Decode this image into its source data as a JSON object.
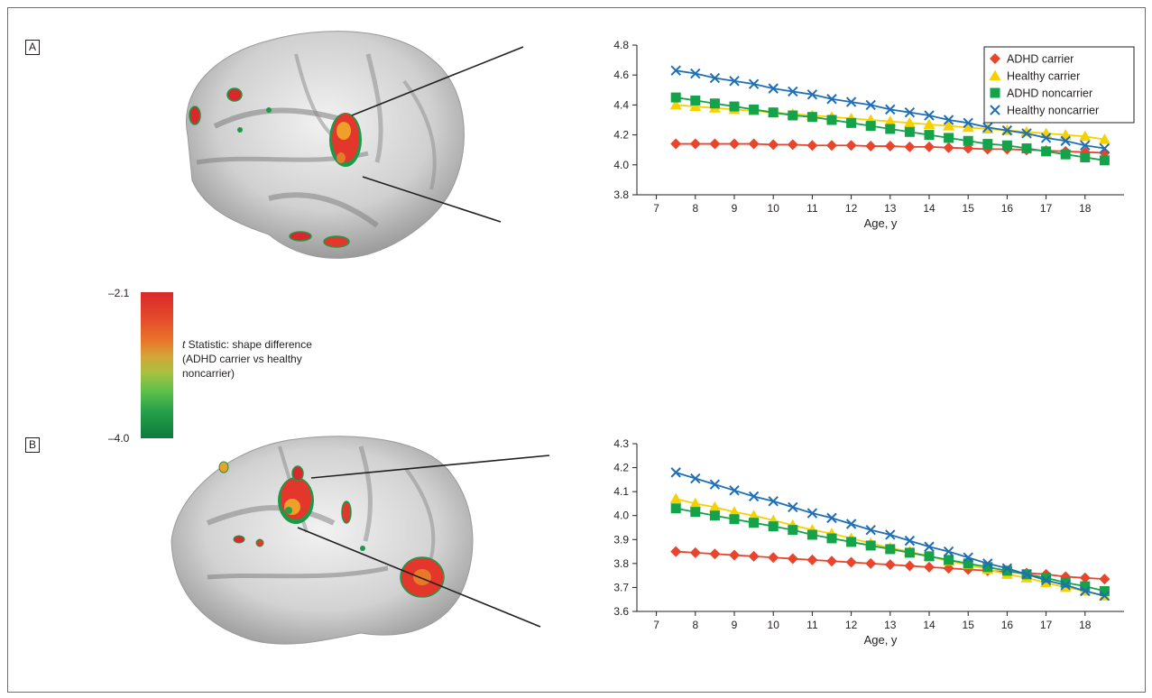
{
  "figure": {
    "panel_a_label": "A",
    "panel_b_label": "B"
  },
  "colorbar": {
    "max_label": "–2.1",
    "min_label": "–4.0",
    "title_italic": "t",
    "title_rest": " Statistic: shape difference",
    "line2": "(ADHD carrier vs healthy",
    "line3": "noncarrier)"
  },
  "colors": {
    "adhd_carrier": "#e8452c",
    "healthy_carrier": "#f7d000",
    "adhd_noncarrier": "#14a24a",
    "healthy_noncarrier": "#1f6fb6"
  },
  "chart_data": [
    {
      "type": "line",
      "panel": "A",
      "xlabel": "Age, y",
      "ylabel": "",
      "xlim": [
        6.5,
        19.0
      ],
      "ylim": [
        3.8,
        4.8
      ],
      "xticks": [
        7,
        8,
        9,
        10,
        11,
        12,
        13,
        14,
        15,
        16,
        17,
        18
      ],
      "yticks": [
        3.8,
        4.0,
        4.2,
        4.4,
        4.6,
        4.8
      ],
      "ytick_labels": [
        "3.8",
        "4.0",
        "4.2",
        "4.4",
        "4.6",
        "4.8"
      ],
      "legend_position": "top-right",
      "x": [
        7.5,
        8.0,
        8.5,
        9.0,
        9.5,
        10.0,
        10.5,
        11.0,
        11.5,
        12.0,
        12.5,
        13.0,
        13.5,
        14.0,
        14.5,
        15.0,
        15.5,
        16.0,
        16.5,
        17.0,
        17.5,
        18.0,
        18.5
      ],
      "series": [
        {
          "name": "ADHD carrier",
          "marker": "diamond",
          "color": "#e8452c",
          "values": [
            4.14,
            4.14,
            4.14,
            4.14,
            4.14,
            4.135,
            4.135,
            4.13,
            4.13,
            4.13,
            4.125,
            4.125,
            4.12,
            4.12,
            4.115,
            4.11,
            4.105,
            4.105,
            4.1,
            4.095,
            4.09,
            4.085,
            4.08
          ]
        },
        {
          "name": "Healthy carrier",
          "marker": "triangle",
          "color": "#f7d000",
          "values": [
            4.4,
            4.39,
            4.38,
            4.37,
            4.36,
            4.35,
            4.34,
            4.33,
            4.32,
            4.31,
            4.3,
            4.29,
            4.28,
            4.27,
            4.26,
            4.25,
            4.24,
            4.23,
            4.22,
            4.21,
            4.2,
            4.19,
            4.17
          ]
        },
        {
          "name": "ADHD noncarrier",
          "marker": "square",
          "color": "#14a24a",
          "values": [
            4.45,
            4.43,
            4.41,
            4.39,
            4.37,
            4.35,
            4.33,
            4.32,
            4.3,
            4.28,
            4.26,
            4.24,
            4.22,
            4.2,
            4.18,
            4.16,
            4.14,
            4.13,
            4.11,
            4.09,
            4.07,
            4.05,
            4.03
          ]
        },
        {
          "name": "Healthy noncarrier",
          "marker": "x",
          "color": "#1f6fb6",
          "values": [
            4.63,
            4.61,
            4.58,
            4.56,
            4.54,
            4.51,
            4.49,
            4.47,
            4.44,
            4.42,
            4.4,
            4.37,
            4.35,
            4.33,
            4.3,
            4.28,
            4.25,
            4.23,
            4.21,
            4.18,
            4.16,
            4.13,
            4.11
          ]
        }
      ]
    },
    {
      "type": "line",
      "panel": "B",
      "xlabel": "Age, y",
      "ylabel": "",
      "xlim": [
        6.5,
        19.0
      ],
      "ylim": [
        3.6,
        4.3
      ],
      "xticks": [
        7,
        8,
        9,
        10,
        11,
        12,
        13,
        14,
        15,
        16,
        17,
        18
      ],
      "yticks": [
        3.6,
        3.7,
        3.8,
        3.9,
        4.0,
        4.1,
        4.2,
        4.3
      ],
      "ytick_labels": [
        "3.6",
        "3.7",
        "3.8",
        "3.9",
        "4.0",
        "4.1",
        "4.2",
        "4.3"
      ],
      "x": [
        7.5,
        8.0,
        8.5,
        9.0,
        9.5,
        10.0,
        10.5,
        11.0,
        11.5,
        12.0,
        12.5,
        13.0,
        13.5,
        14.0,
        14.5,
        15.0,
        15.5,
        16.0,
        16.5,
        17.0,
        17.5,
        18.0,
        18.5
      ],
      "series": [
        {
          "name": "ADHD carrier",
          "marker": "diamond",
          "color": "#e8452c",
          "values": [
            3.85,
            3.845,
            3.84,
            3.835,
            3.83,
            3.825,
            3.82,
            3.815,
            3.81,
            3.805,
            3.8,
            3.795,
            3.79,
            3.785,
            3.78,
            3.775,
            3.77,
            3.765,
            3.76,
            3.755,
            3.745,
            3.74,
            3.735
          ]
        },
        {
          "name": "Healthy carrier",
          "marker": "triangle",
          "color": "#f7d000",
          "values": [
            4.07,
            4.05,
            4.035,
            4.015,
            4.0,
            3.98,
            3.96,
            3.94,
            3.925,
            3.905,
            3.885,
            3.865,
            3.85,
            3.83,
            3.81,
            3.795,
            3.775,
            3.755,
            3.74,
            3.72,
            3.7,
            3.685,
            3.665
          ]
        },
        {
          "name": "ADHD noncarrier",
          "marker": "square",
          "color": "#14a24a",
          "values": [
            4.03,
            4.015,
            4.0,
            3.985,
            3.97,
            3.955,
            3.94,
            3.92,
            3.905,
            3.89,
            3.875,
            3.86,
            3.845,
            3.83,
            3.815,
            3.8,
            3.785,
            3.77,
            3.755,
            3.74,
            3.72,
            3.705,
            3.685
          ]
        },
        {
          "name": "Healthy noncarrier",
          "marker": "x",
          "color": "#1f6fb6",
          "values": [
            4.18,
            4.155,
            4.13,
            4.105,
            4.08,
            4.06,
            4.035,
            4.01,
            3.99,
            3.965,
            3.94,
            3.92,
            3.895,
            3.87,
            3.85,
            3.825,
            3.8,
            3.78,
            3.755,
            3.73,
            3.71,
            3.685,
            3.665
          ]
        }
      ]
    }
  ]
}
